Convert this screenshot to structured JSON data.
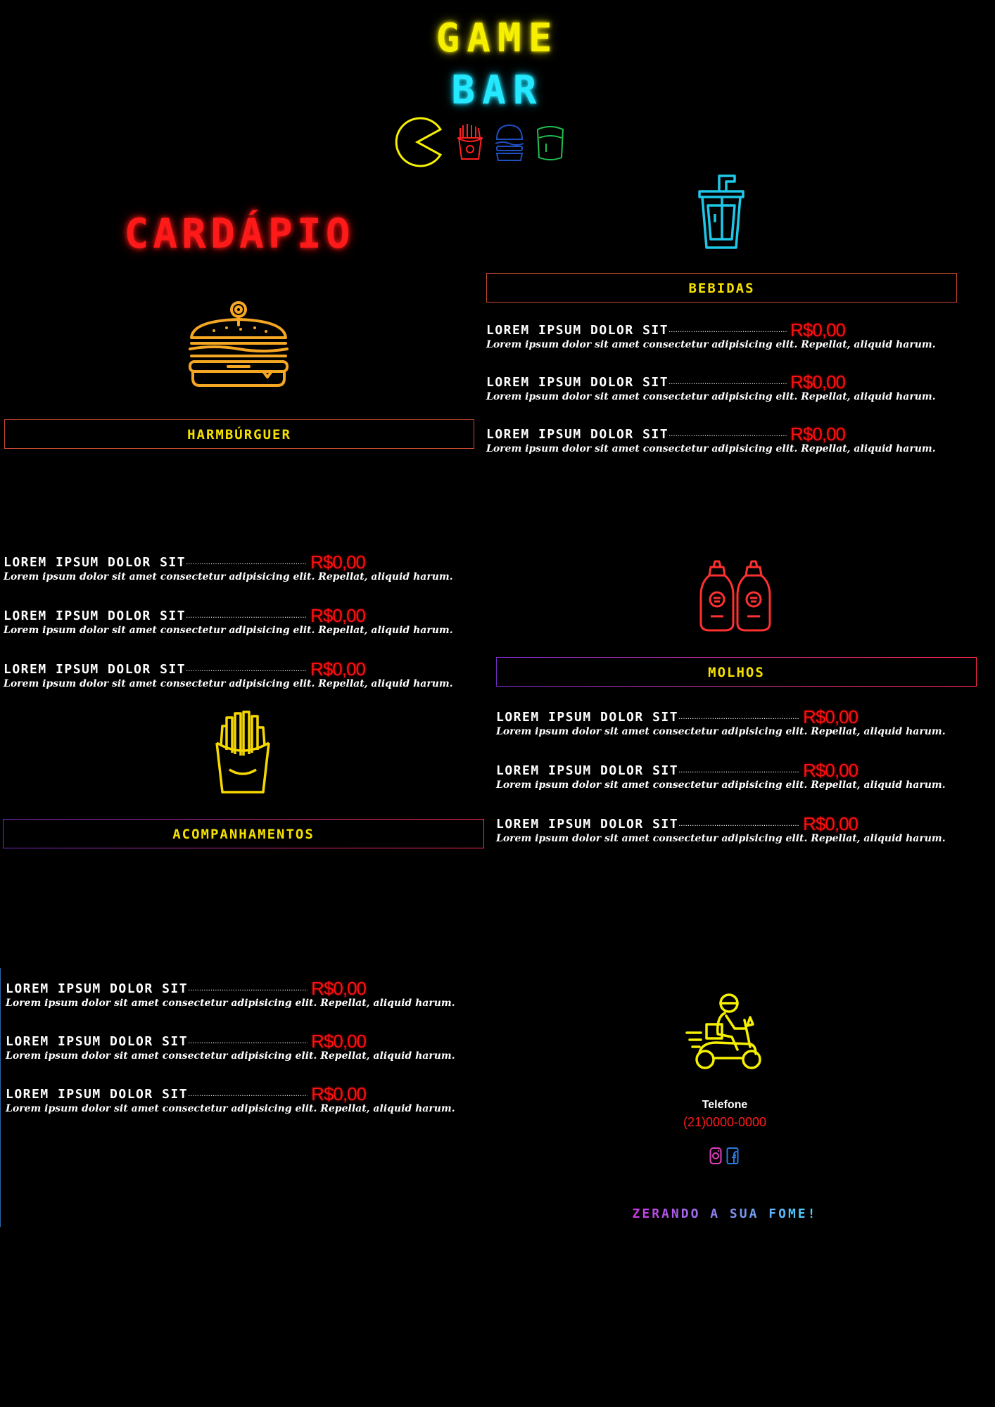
{
  "header": {
    "title_line1": "GAME",
    "title_line2": "BAR",
    "icons": [
      "pacman-icon",
      "fries-icon",
      "burger-icon",
      "cup-icon"
    ]
  },
  "menu_title": "CARDÁPIO",
  "sections": {
    "hamburguer": {
      "title": "HARMBÚRGUER",
      "icon": "hamburger-icon",
      "items": [
        {
          "name": "LOREM IPSUM DOLOR SIT",
          "price": "R$0,00",
          "desc": "Lorem ipsum dolor sit amet consectetur adipisicing elit. Repellat, aliquid harum."
        },
        {
          "name": "LOREM IPSUM DOLOR SIT",
          "price": "R$0,00",
          "desc": "Lorem ipsum dolor sit amet consectetur adipisicing elit. Repellat, aliquid harum."
        },
        {
          "name": "LOREM IPSUM DOLOR SIT",
          "price": "R$0,00",
          "desc": "Lorem ipsum dolor sit amet consectetur adipisicing elit. Repellat, aliquid harum."
        }
      ]
    },
    "bebidas": {
      "title": "BEBIDAS",
      "icon": "drink-cup-icon",
      "items": [
        {
          "name": "LOREM IPSUM DOLOR SIT",
          "price": "R$0,00",
          "desc": "Lorem ipsum dolor sit amet consectetur adipisicing elit. Repellat, aliquid harum."
        },
        {
          "name": "LOREM IPSUM DOLOR SIT",
          "price": "R$0,00",
          "desc": "Lorem ipsum dolor sit amet consectetur adipisicing elit. Repellat, aliquid harum."
        },
        {
          "name": "LOREM IPSUM DOLOR SIT",
          "price": "R$0,00",
          "desc": "Lorem ipsum dolor sit amet consectetur adipisicing elit. Repellat, aliquid harum."
        }
      ]
    },
    "molhos": {
      "title": "MOLHOS",
      "icon": "sauce-bottles-icon",
      "items": [
        {
          "name": "LOREM IPSUM DOLOR SIT",
          "price": "R$0,00",
          "desc": "Lorem ipsum dolor sit amet consectetur adipisicing elit. Repellat, aliquid harum."
        },
        {
          "name": "LOREM IPSUM DOLOR SIT",
          "price": "R$0,00",
          "desc": "Lorem ipsum dolor sit amet consectetur adipisicing elit. Repellat, aliquid harum."
        },
        {
          "name": "LOREM IPSUM DOLOR SIT",
          "price": "R$0,00",
          "desc": "Lorem ipsum dolor sit amet consectetur adipisicing elit. Repellat, aliquid harum."
        }
      ]
    },
    "acompanhamentos": {
      "title": "ACOMPANHAMENTOS",
      "icon": "fries-icon",
      "items": [
        {
          "name": "LOREM IPSUM DOLOR SIT",
          "price": "R$0,00",
          "desc": "Lorem ipsum dolor sit amet consectetur adipisicing elit. Repellat, aliquid harum."
        },
        {
          "name": "LOREM IPSUM DOLOR SIT",
          "price": "R$0,00",
          "desc": "Lorem ipsum dolor sit amet consectetur adipisicing elit. Repellat, aliquid harum."
        },
        {
          "name": "LOREM IPSUM DOLOR SIT",
          "price": "R$0,00",
          "desc": "Lorem ipsum dolor sit amet consectetur adipisicing elit. Repellat, aliquid harum."
        }
      ]
    }
  },
  "contact": {
    "icon": "delivery-scooter-icon",
    "telefone_label": "Telefone",
    "telefone_number": "(21)0000-0000",
    "social_icons": [
      "instagram-icon",
      "facebook-icon"
    ],
    "tagline": "ZERANDO A SUA FOME!"
  },
  "colors": {
    "background": "#000000",
    "yellow": "#f6f000",
    "cyan": "#24e8ff",
    "red": "#ff1a1a",
    "orange": "#f5a623",
    "green": "#1fbf4f",
    "blue": "#1f4fbf"
  }
}
